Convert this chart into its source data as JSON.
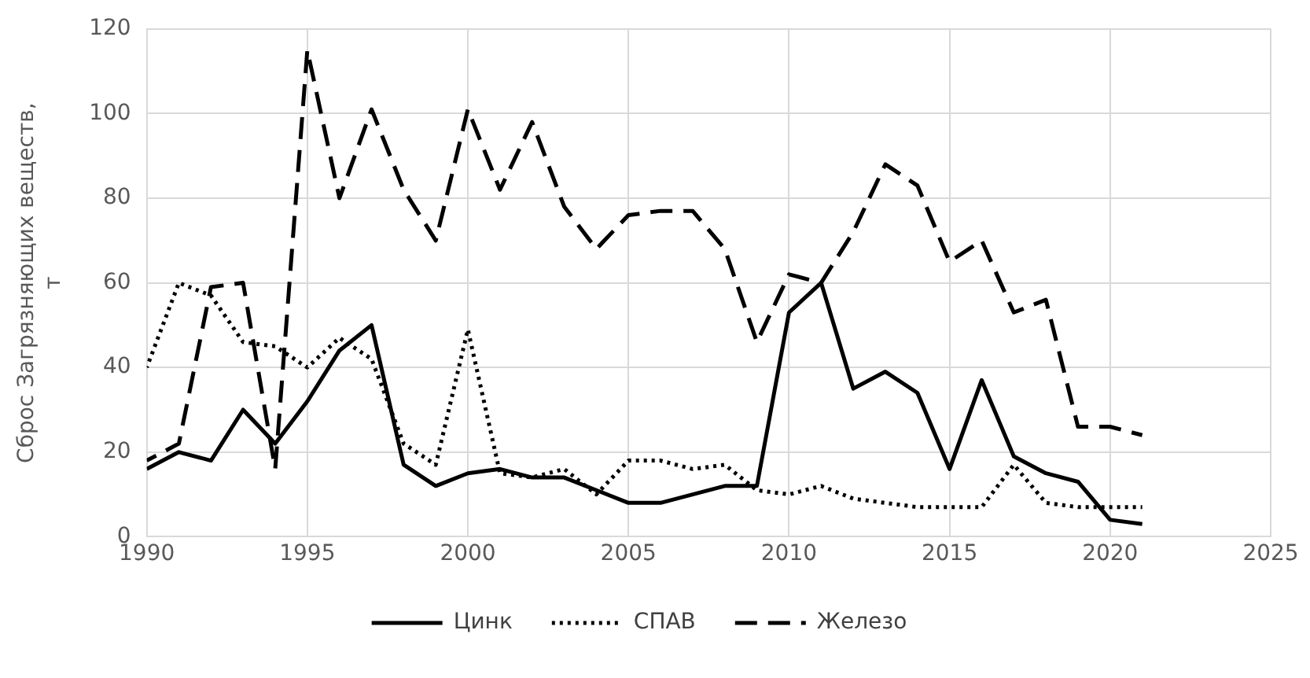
{
  "chart_data": {
    "type": "line",
    "ylabel": "Сброс Загрязняющих веществ, т",
    "x": [
      1990,
      1991,
      1992,
      1993,
      1994,
      1995,
      1996,
      1997,
      1998,
      1999,
      2000,
      2001,
      2002,
      2003,
      2004,
      2005,
      2006,
      2007,
      2008,
      2009,
      2010,
      2011,
      2012,
      2013,
      2014,
      2015,
      2016,
      2017,
      2018,
      2019,
      2020,
      2021
    ],
    "series": [
      {
        "name": "Цинк",
        "color": "#000000",
        "line_style": "solid",
        "values": [
          16,
          20,
          18,
          30,
          22,
          32,
          44,
          50,
          17,
          12,
          15,
          16,
          14,
          14,
          11,
          8,
          8,
          10,
          12,
          12,
          53,
          60,
          35,
          39,
          34,
          16,
          37,
          19,
          15,
          13,
          4,
          3
        ]
      },
      {
        "name": "СПАВ",
        "color": "#000000",
        "line_style": "dotted",
        "values": [
          40,
          60,
          57,
          46,
          45,
          40,
          47,
          42,
          22,
          17,
          49,
          15,
          14,
          16,
          10,
          18,
          18,
          16,
          17,
          11,
          10,
          12,
          9,
          8,
          7,
          7,
          7,
          17,
          8,
          7,
          7,
          7
        ]
      },
      {
        "name": "Железо",
        "color": "#000000",
        "line_style": "dashed",
        "values": [
          18,
          22,
          59,
          60,
          16,
          115,
          80,
          101,
          82,
          70,
          101,
          82,
          98,
          78,
          68,
          76,
          77,
          77,
          68,
          46,
          62,
          60,
          72,
          88,
          83,
          65,
          70,
          53,
          56,
          26,
          26,
          24
        ]
      }
    ],
    "xlim": [
      1990,
      2025
    ],
    "xticks": [
      1990,
      1995,
      2000,
      2005,
      2010,
      2015,
      2020,
      2025
    ],
    "ylim": [
      0,
      120
    ],
    "yticks": [
      0,
      20,
      40,
      60,
      80,
      100,
      120
    ],
    "grid": true,
    "legend": "bottom",
    "marker": "none"
  }
}
